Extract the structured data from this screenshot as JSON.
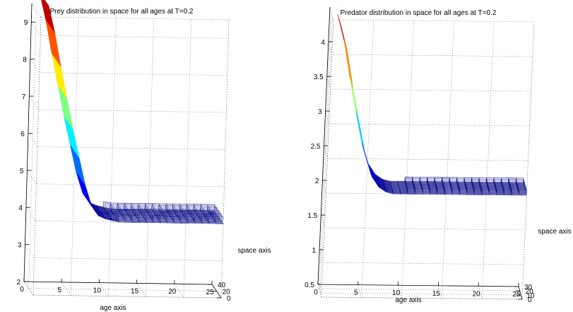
{
  "chart_data": [
    {
      "type": "surface",
      "title": "Prey distribution in space for all ages at T=0.2",
      "xlabel": "age axis",
      "ylabel": "space axis",
      "zlabel": "",
      "x_ticks": [
        0,
        5,
        10,
        15,
        20,
        25
      ],
      "y_ticks": [
        0,
        20,
        40
      ],
      "z_ticks": [
        2,
        3,
        4,
        5,
        6,
        7,
        8,
        9
      ],
      "xlim": [
        0,
        25
      ],
      "ylim": [
        0,
        40
      ],
      "zlim": [
        2,
        9.5
      ],
      "grid": true,
      "colormap": "jet",
      "profile_age": [
        1,
        2,
        3,
        4,
        5,
        6,
        7,
        8,
        9,
        10,
        11,
        12,
        13,
        14,
        15,
        16,
        17,
        18,
        19,
        20,
        21,
        22,
        23,
        24,
        25
      ],
      "profile_value": [
        9.8,
        9.0,
        8.0,
        7.1,
        6.2,
        5.4,
        4.6,
        4.2,
        4.1,
        4.05,
        4.0,
        4.0,
        4.0,
        4.0,
        4.0,
        4.0,
        4.0,
        4.0,
        4.0,
        4.0,
        4.0,
        4.0,
        4.0,
        4.0,
        4.0
      ],
      "space_extent": [
        0,
        40
      ]
    },
    {
      "type": "surface",
      "title": "Predator distribution in space for all ages at T=0.2",
      "xlabel": "age axis",
      "ylabel": "space axis",
      "zlabel": "",
      "x_ticks": [
        0,
        5,
        10,
        15,
        20,
        25
      ],
      "y_ticks": [
        0,
        10,
        20,
        30
      ],
      "z_ticks": [
        0.5,
        1,
        1.5,
        2,
        2.5,
        3,
        3.5,
        4
      ],
      "xlim": [
        0,
        25
      ],
      "ylim": [
        0,
        30
      ],
      "zlim": [
        0.5,
        4.5
      ],
      "grid": true,
      "colormap": "jet",
      "profile_age": [
        1,
        2,
        3,
        4,
        5,
        6,
        7,
        8,
        9,
        10,
        11,
        12,
        13,
        14,
        15,
        16,
        17,
        18,
        19,
        20,
        21,
        22,
        23,
        24,
        25
      ],
      "profile_value": [
        4.4,
        4.0,
        3.4,
        2.9,
        2.4,
        2.15,
        2.05,
        2.0,
        2.0,
        2.0,
        2.0,
        2.0,
        2.0,
        2.0,
        2.0,
        2.0,
        2.0,
        2.0,
        2.0,
        2.0,
        2.0,
        2.0,
        2.0,
        2.0,
        2.0
      ],
      "space_extent": [
        0,
        30
      ]
    }
  ]
}
